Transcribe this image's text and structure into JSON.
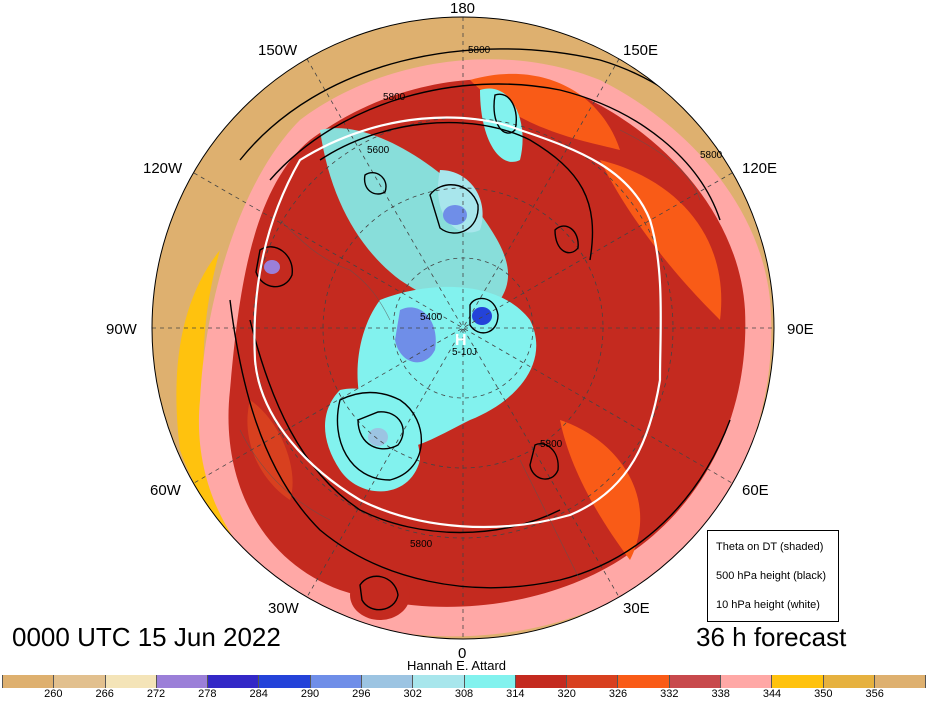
{
  "map": {
    "longitude_labels": [
      "180",
      "150E",
      "120E",
      "90E",
      "60E",
      "30E",
      "0",
      "30W",
      "60W",
      "90W",
      "120W",
      "150W"
    ],
    "contour_labels_black": [
      "5800",
      "5800",
      "5600",
      "5400",
      "5800",
      "5800",
      "5800"
    ],
    "contour_label_white": "5-10J",
    "high_marker": "H"
  },
  "footer": {
    "time_label": "0000 UTC 15 Jun 2022",
    "forecast_label": "36 h forecast",
    "author": "Hannah E. Attard"
  },
  "legend": {
    "items": [
      "Theta on DT (shaded)",
      "500 hPa height (black)",
      "10 hPa height (white)"
    ]
  },
  "colorbar": {
    "ticks": [
      "260",
      "266",
      "272",
      "278",
      "284",
      "290",
      "296",
      "302",
      "308",
      "314",
      "320",
      "326",
      "332",
      "338",
      "344",
      "350",
      "356"
    ],
    "colors": [
      "#deb06f",
      "#e2c08e",
      "#f4e4b8",
      "#9b7fd8",
      "#3328c7",
      "#2443d9",
      "#6f8ee8",
      "#9cc4e2",
      "#a8e6ec",
      "#82f2ee",
      "#c42a1f",
      "#d8401f",
      "#f95b17",
      "#c8494c",
      "#ffa8a6",
      "#ffc20e",
      "#e6b13f",
      "#deb06f"
    ]
  }
}
